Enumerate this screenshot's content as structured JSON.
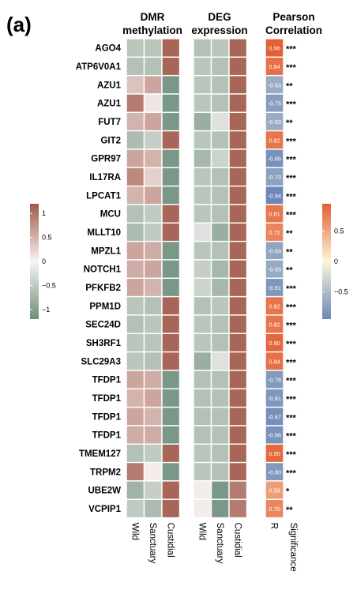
{
  "panel_label": "(a)",
  "headers": {
    "dmr": [
      "DMR",
      "methylation"
    ],
    "deg": [
      "DEG",
      "expression"
    ],
    "pearson": [
      "Pearson",
      "Correlation"
    ]
  },
  "x_labels": {
    "dmr": [
      "Wild",
      "Sanctuary",
      "Custidial"
    ],
    "deg": [
      "Wild",
      "Sanctuary",
      "Custidial"
    ],
    "pearson": [
      "R",
      "Significance"
    ]
  },
  "colors": {
    "neg": "#6e8f7c",
    "mid": "#f7f3f2",
    "pos": "#a0584a",
    "r_neg": "#6a87b8",
    "r_mid": "#fbf6d6",
    "r_pos": "#e45f35"
  },
  "chart_data": {
    "type": "heatmap",
    "genes": [
      "AGO4",
      "ATP6V0A1",
      "AZU1",
      "AZU1",
      "FUT7",
      "GIT2",
      "GPR97",
      "IL17RA",
      "LPCAT1",
      "MCU",
      "MLLT10",
      "MPZL1",
      "NOTCH1",
      "PFKFB2",
      "PPM1D",
      "SEC24D",
      "SH3RF1",
      "SLC29A3",
      "TFDP1",
      "TFDP1",
      "TFDP1",
      "TFDP1",
      "TMEM127",
      "TRPM2",
      "UBE2W",
      "VCPIP1"
    ],
    "groups": [
      "Wild",
      "Sanctuary",
      "Custidial"
    ],
    "dmr_methylation": [
      [
        -0.5,
        -0.5,
        1.0
      ],
      [
        -0.55,
        -0.55,
        1.0
      ],
      [
        0.35,
        0.55,
        -1.0
      ],
      [
        0.85,
        0.1,
        -1.0
      ],
      [
        0.45,
        0.55,
        -1.0
      ],
      [
        -0.6,
        -0.4,
        1.0
      ],
      [
        0.55,
        0.45,
        -1.0
      ],
      [
        0.75,
        0.25,
        -1.0
      ],
      [
        0.45,
        0.55,
        -1.0
      ],
      [
        -0.55,
        -0.45,
        1.0
      ],
      [
        -0.6,
        -0.45,
        1.0
      ],
      [
        0.55,
        0.5,
        -1.0
      ],
      [
        0.5,
        0.55,
        -1.0
      ],
      [
        0.55,
        0.45,
        -1.0
      ],
      [
        -0.5,
        -0.55,
        1.0
      ],
      [
        -0.55,
        -0.5,
        1.0
      ],
      [
        -0.5,
        -0.5,
        1.0
      ],
      [
        -0.5,
        -0.55,
        1.0
      ],
      [
        0.55,
        0.5,
        -1.0
      ],
      [
        0.45,
        0.55,
        -1.0
      ],
      [
        0.55,
        0.45,
        -1.0
      ],
      [
        0.5,
        0.5,
        -1.0
      ],
      [
        -0.55,
        -0.45,
        1.0
      ],
      [
        0.85,
        0.05,
        -1.0
      ],
      [
        -0.7,
        -0.4,
        1.0
      ],
      [
        -0.45,
        -0.6,
        1.0
      ]
    ],
    "deg_expression": [
      [
        -0.55,
        -0.5,
        1.0
      ],
      [
        -0.5,
        -0.55,
        1.0
      ],
      [
        -0.5,
        -0.55,
        1.0
      ],
      [
        -0.5,
        -0.55,
        1.0
      ],
      [
        -0.75,
        -0.2,
        1.0
      ],
      [
        -0.5,
        -0.55,
        1.0
      ],
      [
        -0.65,
        -0.35,
        1.0
      ],
      [
        -0.5,
        -0.55,
        1.0
      ],
      [
        -0.5,
        -0.55,
        1.0
      ],
      [
        -0.5,
        -0.55,
        1.0
      ],
      [
        -0.2,
        -0.75,
        1.0
      ],
      [
        -0.5,
        -0.55,
        1.0
      ],
      [
        -0.4,
        -0.65,
        1.0
      ],
      [
        -0.35,
        -0.65,
        1.0
      ],
      [
        -0.55,
        -0.5,
        1.0
      ],
      [
        -0.5,
        -0.55,
        1.0
      ],
      [
        -0.5,
        -0.55,
        1.0
      ],
      [
        -0.75,
        -0.2,
        1.0
      ],
      [
        -0.55,
        -0.55,
        1.0
      ],
      [
        -0.55,
        -0.55,
        1.0
      ],
      [
        -0.55,
        -0.55,
        1.0
      ],
      [
        -0.55,
        -0.55,
        1.0
      ],
      [
        -0.5,
        -0.55,
        1.0
      ],
      [
        -0.5,
        -0.55,
        1.0
      ],
      [
        0.05,
        -1.0,
        0.85
      ],
      [
        0.05,
        -1.0,
        0.85
      ]
    ],
    "pearson_r": [
      0.96,
      0.84,
      -0.63,
      -0.75,
      -0.63,
      0.82,
      -0.86,
      -0.73,
      -0.94,
      0.81,
      0.72,
      -0.69,
      -0.65,
      -0.81,
      0.82,
      0.82,
      0.9,
      0.84,
      -0.78,
      -0.81,
      -0.87,
      -0.86,
      0.9,
      -0.8,
      0.56,
      0.7
    ],
    "r_labels": [
      "0.96",
      "0.84",
      "-0.63",
      "-0.75",
      "-0.63",
      "0.82",
      "-0.86",
      "-0.73",
      "-0.94",
      "0.81",
      "0.72",
      "-0.69",
      "-0.65",
      "-0.81",
      "0.82",
      "0.82",
      "0.90",
      "0.84",
      "-0.78",
      "-0.81",
      "-0.87",
      "-0.86",
      "0.90",
      "-0.80",
      "0.56",
      "0.70"
    ],
    "significance": [
      "***",
      "***",
      "**",
      "***",
      "**",
      "***",
      "***",
      "***",
      "***",
      "***",
      "**",
      "**",
      "**",
      "***",
      "***",
      "***",
      "***",
      "***",
      "***",
      "***",
      "***",
      "***",
      "***",
      "***",
      "*",
      "**"
    ],
    "left_colorbar": {
      "range": [
        -1.2,
        1.2
      ],
      "ticks": [
        1,
        0.5,
        0,
        -0.5,
        -1
      ],
      "tick_labels": [
        "1",
        "0.5",
        "0",
        "−0.5",
        "−1"
      ]
    },
    "right_colorbar": {
      "range": [
        -0.95,
        0.95
      ],
      "ticks": [
        0.5,
        0,
        -0.5
      ],
      "tick_labels": [
        "0.5",
        "0",
        "−0.5"
      ]
    }
  }
}
